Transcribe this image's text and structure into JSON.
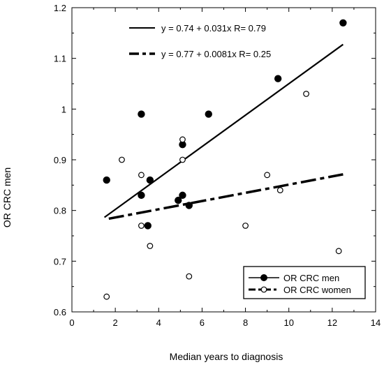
{
  "chart_data": {
    "type": "scatter",
    "title": "",
    "xlabel": "Median years to diagnosis",
    "ylabel": "OR CRC men",
    "xlim": [
      0,
      14
    ],
    "ylim": [
      0.6,
      1.2
    ],
    "x_ticks": [
      "0",
      "2",
      "4",
      "6",
      "8",
      "10",
      "12",
      "14"
    ],
    "y_ticks": [
      "0.6",
      "0.7",
      "0.8",
      "0.9",
      "1",
      "1.1",
      "1.2"
    ],
    "legend_position": "bottom-right",
    "grid": false,
    "series": [
      {
        "name": "OR CRC men",
        "marker": "filled-circle",
        "color": "#000000",
        "points": [
          {
            "x": 1.6,
            "y": 0.86
          },
          {
            "x": 3.2,
            "y": 0.99
          },
          {
            "x": 3.2,
            "y": 0.83
          },
          {
            "x": 3.5,
            "y": 0.77
          },
          {
            "x": 3.6,
            "y": 0.86
          },
          {
            "x": 4.9,
            "y": 0.82
          },
          {
            "x": 5.1,
            "y": 0.93
          },
          {
            "x": 5.1,
            "y": 0.83
          },
          {
            "x": 5.4,
            "y": 0.81
          },
          {
            "x": 6.3,
            "y": 0.99
          },
          {
            "x": 9.5,
            "y": 1.06
          },
          {
            "x": 12.5,
            "y": 1.17
          }
        ],
        "fit": {
          "label": "y = 0.74 + 0.031x   R= 0.79",
          "intercept": 0.74,
          "slope": 0.031,
          "x_range": [
            1.5,
            12.5
          ],
          "style": "solid"
        }
      },
      {
        "name": "OR CRC women",
        "marker": "open-circle",
        "color": "#000000",
        "points": [
          {
            "x": 1.6,
            "y": 0.63
          },
          {
            "x": 2.3,
            "y": 0.9
          },
          {
            "x": 3.2,
            "y": 0.87
          },
          {
            "x": 3.2,
            "y": 0.77
          },
          {
            "x": 3.6,
            "y": 0.73
          },
          {
            "x": 5.1,
            "y": 0.94
          },
          {
            "x": 5.1,
            "y": 0.9
          },
          {
            "x": 5.4,
            "y": 0.67
          },
          {
            "x": 8.0,
            "y": 0.77
          },
          {
            "x": 9.0,
            "y": 0.87
          },
          {
            "x": 9.6,
            "y": 0.84
          },
          {
            "x": 10.8,
            "y": 1.03
          },
          {
            "x": 12.3,
            "y": 0.72
          }
        ],
        "fit": {
          "label": "y = 0.77 + 0.0081x   R= 0.25",
          "intercept": 0.77,
          "slope": 0.0081,
          "x_range": [
            1.7,
            12.5
          ],
          "style": "dashed"
        }
      }
    ]
  }
}
